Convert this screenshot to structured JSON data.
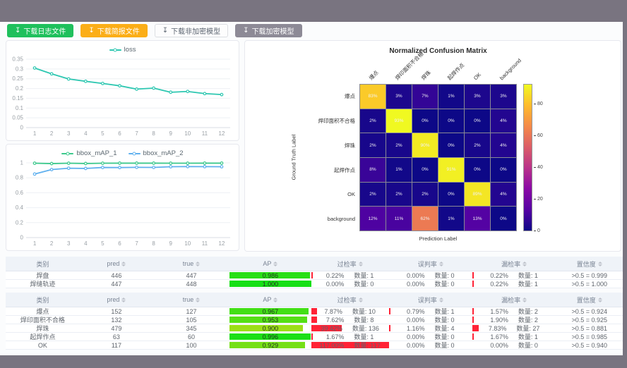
{
  "toolbar": {
    "icon_glyph": "↧",
    "buttons": [
      {
        "label": "下载日志文件",
        "bg": "#1fc05c",
        "fg": "#ffffff",
        "border": "#1fc05c"
      },
      {
        "label": "下载简报文件",
        "bg": "#fbae17",
        "fg": "#ffffff",
        "border": "#fbae17"
      },
      {
        "label": "下载非加密模型",
        "bg": "#fdfdfd",
        "fg": "#5b6470",
        "border": "#dcdee2"
      },
      {
        "label": "下载加密模型",
        "bg": "#8d8a96",
        "fg": "#ffffff",
        "border": "#8d8a96"
      }
    ]
  },
  "chart_data": [
    {
      "type": "line",
      "id": "loss",
      "categories": [
        1,
        2,
        3,
        4,
        5,
        6,
        7,
        8,
        9,
        10,
        11,
        12
      ],
      "series": [
        {
          "name": "loss",
          "color": "#2ec7b1",
          "values": [
            0.305,
            0.275,
            0.249,
            0.237,
            0.226,
            0.214,
            0.197,
            0.202,
            0.181,
            0.185,
            0.174,
            0.169
          ]
        }
      ],
      "ylim": [
        0,
        0.35
      ],
      "yticks": [
        0,
        0.05,
        0.1,
        0.15,
        0.2,
        0.25,
        0.3,
        0.35
      ],
      "legend_position": "top",
      "grid": true
    },
    {
      "type": "line",
      "id": "bbox_map",
      "categories": [
        1,
        2,
        3,
        4,
        5,
        6,
        7,
        8,
        9,
        10,
        11,
        12
      ],
      "series": [
        {
          "name": "bbox_mAP_1",
          "color": "#3cc98c",
          "values": [
            0.995,
            0.99,
            0.995,
            0.991,
            0.995,
            0.996,
            0.996,
            0.996,
            0.995,
            0.995,
            0.996,
            0.996
          ]
        },
        {
          "name": "bbox_mAP_2",
          "color": "#5fb0ee",
          "values": [
            0.85,
            0.91,
            0.928,
            0.925,
            0.938,
            0.937,
            0.94,
            0.939,
            0.948,
            0.95,
            0.949,
            0.948
          ]
        }
      ],
      "ylim": [
        0,
        1
      ],
      "yticks": [
        0,
        0.2,
        0.4,
        0.6,
        0.8,
        1
      ],
      "legend_position": "top",
      "grid": true
    },
    {
      "type": "heatmap",
      "id": "confusion_matrix",
      "title": "Normalized Confusion Matrix",
      "xlabel": "Prediction Label",
      "ylabel": "Ground Truth Label",
      "labels": [
        "爆点",
        "焊印面积不合格",
        "焊珠",
        "起焊作点",
        "OK",
        "background"
      ],
      "values": [
        [
          83,
          3,
          7,
          1,
          3,
          3
        ],
        [
          2,
          93,
          0,
          0,
          0,
          4
        ],
        [
          2,
          2,
          90,
          0,
          2,
          4
        ],
        [
          8,
          1,
          0,
          91,
          0,
          0
        ],
        [
          2,
          2,
          2,
          0,
          89,
          4
        ],
        [
          12,
          11,
          62,
          1,
          13,
          0
        ]
      ],
      "unit": "%",
      "vmin": 0,
      "vmax": 93,
      "colormap": "plasma",
      "colorbar_ticks": [
        0,
        20,
        40,
        60,
        80
      ],
      "legend_position": "right"
    }
  ],
  "colors": {
    "rate_bar_red": "#ff2236"
  },
  "tables": [
    {
      "headers": [
        {
          "label": "类别",
          "sortable": false
        },
        {
          "label": "pred",
          "sortable": true
        },
        {
          "label": "true",
          "sortable": true
        },
        {
          "label": "AP",
          "sortable": true
        },
        {
          "label": "过检率",
          "sortable": true
        },
        {
          "label": "误判率",
          "sortable": true
        },
        {
          "label": "漏检率",
          "sortable": true
        },
        {
          "label": "置信度",
          "sortable": true
        }
      ],
      "rows": [
        {
          "category": "焊盘",
          "pred": 446,
          "true": 447,
          "ap_text": "0.986",
          "ap": 0.986,
          "over": {
            "rate": "0.22%",
            "count": "数量: 1",
            "pct": 0.22
          },
          "misjudge": {
            "rate": "0.00%",
            "count": "数量: 0",
            "pct": 0
          },
          "miss": {
            "rate": "0.22%",
            "count": "数量: 1",
            "pct": 0.22
          },
          "confidence": ">0.5 = 0.999"
        },
        {
          "category": "焊缝轨迹",
          "pred": 447,
          "true": 448,
          "ap_text": "1.000",
          "ap": 1.0,
          "over": {
            "rate": "0.00%",
            "count": "数量: 0",
            "pct": 0
          },
          "misjudge": {
            "rate": "0.00%",
            "count": "数量: 0",
            "pct": 0
          },
          "miss": {
            "rate": "0.22%",
            "count": "数量: 1",
            "pct": 0.22
          },
          "confidence": ">0.5 = 1.000"
        }
      ]
    },
    {
      "headers": [
        {
          "label": "类别",
          "sortable": false
        },
        {
          "label": "pred",
          "sortable": true
        },
        {
          "label": "true",
          "sortable": true
        },
        {
          "label": "AP",
          "sortable": true
        },
        {
          "label": "过检率",
          "sortable": true
        },
        {
          "label": "误判率",
          "sortable": true
        },
        {
          "label": "漏检率",
          "sortable": true
        },
        {
          "label": "置信度",
          "sortable": true
        }
      ],
      "rows": [
        {
          "category": "爆点",
          "pred": 152,
          "true": 127,
          "ap_text": "0.967",
          "ap": 0.967,
          "over": {
            "rate": "7.87%",
            "count": "数量: 10",
            "pct": 7.87
          },
          "misjudge": {
            "rate": "0.79%",
            "count": "数量: 1",
            "pct": 0.79
          },
          "miss": {
            "rate": "1.57%",
            "count": "数量: 2",
            "pct": 1.57
          },
          "confidence": ">0.5 = 0.924"
        },
        {
          "category": "焊印面积不合格",
          "pred": 132,
          "true": 105,
          "ap_text": "0.953",
          "ap": 0.953,
          "over": {
            "rate": "7.62%",
            "count": "数量: 8",
            "pct": 7.62
          },
          "misjudge": {
            "rate": "0.00%",
            "count": "数量: 0",
            "pct": 0
          },
          "miss": {
            "rate": "1.90%",
            "count": "数量: 2",
            "pct": 1.9
          },
          "confidence": ">0.5 = 0.925"
        },
        {
          "category": "焊珠",
          "pred": 479,
          "true": 345,
          "ap_text": "0.900",
          "ap": 0.9,
          "over": {
            "rate": "39.42%",
            "count": "数量: 136",
            "pct": 39.42
          },
          "misjudge": {
            "rate": "1.16%",
            "count": "数量: 4",
            "pct": 1.16
          },
          "miss": {
            "rate": "7.83%",
            "count": "数量: 27",
            "pct": 7.83
          },
          "confidence": ">0.5 = 0.881"
        },
        {
          "category": "起焊作点",
          "pred": 63,
          "true": 60,
          "ap_text": "0.996",
          "ap": 0.996,
          "over": {
            "rate": "1.67%",
            "count": "数量: 1",
            "pct": 1.67
          },
          "misjudge": {
            "rate": "0.00%",
            "count": "数量: 0",
            "pct": 0
          },
          "miss": {
            "rate": "1.67%",
            "count": "数量: 1",
            "pct": 1.67
          },
          "confidence": ">0.5 = 0.985"
        },
        {
          "category": "OK",
          "pred": 117,
          "true": 100,
          "ap_text": "0.929",
          "ap": 0.929,
          "over": {
            "rate": "117.00%",
            "count": "数量: 117",
            "pct": 117
          },
          "misjudge": {
            "rate": "0.00%",
            "count": "数量: 0",
            "pct": 0
          },
          "miss": {
            "rate": "0.00%",
            "count": "数量: 0",
            "pct": 0
          },
          "confidence": ">0.5 = 0.940"
        }
      ]
    }
  ]
}
